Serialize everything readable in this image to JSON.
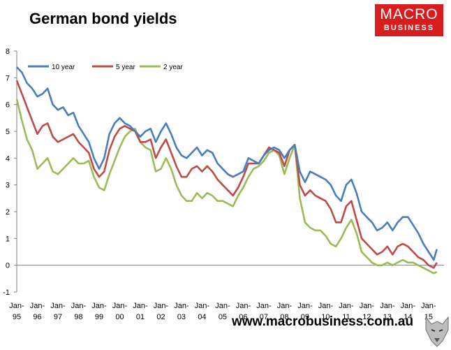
{
  "title": "German bond yields",
  "brand": {
    "line1": "MACRO",
    "line2": "BUSINESS",
    "color": "#d71d1d"
  },
  "footer": {
    "url": "www.macrobusiness.com.au",
    "logo_icon": "wolf-logo-icon"
  },
  "chart_data": {
    "type": "line",
    "title": "German bond yields",
    "xlabel": "",
    "ylabel": "",
    "ylim": [
      -1,
      8
    ],
    "yticks": [
      -1,
      0,
      1,
      2,
      3,
      4,
      5,
      6,
      7,
      8
    ],
    "xlim": [
      1995.0,
      2015.75
    ],
    "xtick_labels": [
      {
        "top": "Jan-",
        "bottom": "95"
      },
      {
        "top": "Jan-",
        "bottom": "96"
      },
      {
        "top": "Jan-",
        "bottom": "97"
      },
      {
        "top": "Jan-",
        "bottom": "98"
      },
      {
        "top": "Jan-",
        "bottom": "99"
      },
      {
        "top": "Jan-",
        "bottom": "00"
      },
      {
        "top": "Jan-",
        "bottom": "01"
      },
      {
        "top": "Jan-",
        "bottom": "02"
      },
      {
        "top": "Jan-",
        "bottom": "03"
      },
      {
        "top": "Jan-",
        "bottom": "04"
      },
      {
        "top": "Jan-",
        "bottom": "05"
      },
      {
        "top": "Jan-",
        "bottom": "06"
      },
      {
        "top": "Jan-",
        "bottom": "07"
      },
      {
        "top": "Jan-",
        "bottom": "08"
      },
      {
        "top": "Jan-",
        "bottom": "09"
      },
      {
        "top": "Jan-",
        "bottom": "10"
      },
      {
        "top": "Jan-",
        "bottom": "11"
      },
      {
        "top": "Jan-",
        "bottom": "12"
      },
      {
        "top": "Jan-",
        "bottom": "13"
      },
      {
        "top": "Jan-",
        "bottom": "14"
      },
      {
        "top": "Jan-",
        "bottom": "15"
      }
    ],
    "grid": false,
    "legend_position": "top-left",
    "series": [
      {
        "name": "10 year",
        "color": "#4a7ebb",
        "points": [
          [
            1995.0,
            7.4
          ],
          [
            1995.25,
            7.2
          ],
          [
            1995.5,
            6.8
          ],
          [
            1995.75,
            6.6
          ],
          [
            1996.0,
            6.3
          ],
          [
            1996.25,
            6.4
          ],
          [
            1996.5,
            6.6
          ],
          [
            1996.75,
            6.0
          ],
          [
            1997.0,
            5.8
          ],
          [
            1997.25,
            5.9
          ],
          [
            1997.5,
            5.6
          ],
          [
            1997.75,
            5.7
          ],
          [
            1998.0,
            5.2
          ],
          [
            1998.25,
            4.9
          ],
          [
            1998.5,
            4.6
          ],
          [
            1998.75,
            4.0
          ],
          [
            1999.0,
            3.6
          ],
          [
            1999.25,
            4.0
          ],
          [
            1999.5,
            4.9
          ],
          [
            1999.75,
            5.3
          ],
          [
            2000.0,
            5.5
          ],
          [
            2000.25,
            5.3
          ],
          [
            2000.5,
            5.2
          ],
          [
            2000.75,
            5.0
          ],
          [
            2001.0,
            4.8
          ],
          [
            2001.25,
            5.0
          ],
          [
            2001.5,
            5.1
          ],
          [
            2001.75,
            4.6
          ],
          [
            2002.0,
            5.0
          ],
          [
            2002.25,
            5.3
          ],
          [
            2002.5,
            4.9
          ],
          [
            2002.75,
            4.4
          ],
          [
            2003.0,
            4.1
          ],
          [
            2003.25,
            4.0
          ],
          [
            2003.5,
            4.2
          ],
          [
            2003.75,
            4.4
          ],
          [
            2004.0,
            4.1
          ],
          [
            2004.25,
            4.3
          ],
          [
            2004.5,
            4.2
          ],
          [
            2004.75,
            3.8
          ],
          [
            2005.0,
            3.6
          ],
          [
            2005.25,
            3.4
          ],
          [
            2005.5,
            3.3
          ],
          [
            2005.75,
            3.4
          ],
          [
            2006.0,
            3.5
          ],
          [
            2006.25,
            4.0
          ],
          [
            2006.5,
            3.9
          ],
          [
            2006.75,
            3.8
          ],
          [
            2007.0,
            4.1
          ],
          [
            2007.25,
            4.3
          ],
          [
            2007.5,
            4.4
          ],
          [
            2007.75,
            4.3
          ],
          [
            2008.0,
            4.0
          ],
          [
            2008.25,
            4.3
          ],
          [
            2008.5,
            4.5
          ],
          [
            2008.75,
            3.5
          ],
          [
            2009.0,
            3.1
          ],
          [
            2009.25,
            3.5
          ],
          [
            2009.5,
            3.4
          ],
          [
            2009.75,
            3.3
          ],
          [
            2010.0,
            3.2
          ],
          [
            2010.25,
            3.0
          ],
          [
            2010.5,
            2.6
          ],
          [
            2010.75,
            2.4
          ],
          [
            2011.0,
            3.0
          ],
          [
            2011.25,
            3.2
          ],
          [
            2011.5,
            2.7
          ],
          [
            2011.75,
            2.0
          ],
          [
            2012.0,
            1.8
          ],
          [
            2012.25,
            1.6
          ],
          [
            2012.5,
            1.3
          ],
          [
            2012.75,
            1.4
          ],
          [
            2013.0,
            1.6
          ],
          [
            2013.25,
            1.3
          ],
          [
            2013.5,
            1.6
          ],
          [
            2013.75,
            1.8
          ],
          [
            2014.0,
            1.8
          ],
          [
            2014.25,
            1.5
          ],
          [
            2014.5,
            1.2
          ],
          [
            2014.75,
            0.8
          ],
          [
            2015.0,
            0.5
          ],
          [
            2015.25,
            0.2
          ],
          [
            2015.4,
            0.6
          ]
        ]
      },
      {
        "name": "5 year",
        "color": "#be4b48",
        "points": [
          [
            1995.0,
            6.9
          ],
          [
            1995.25,
            6.4
          ],
          [
            1995.5,
            5.9
          ],
          [
            1995.75,
            5.4
          ],
          [
            1996.0,
            4.9
          ],
          [
            1996.25,
            5.2
          ],
          [
            1996.5,
            5.3
          ],
          [
            1996.75,
            4.8
          ],
          [
            1997.0,
            4.6
          ],
          [
            1997.25,
            4.7
          ],
          [
            1997.5,
            4.8
          ],
          [
            1997.75,
            4.9
          ],
          [
            1998.0,
            4.6
          ],
          [
            1998.25,
            4.4
          ],
          [
            1998.5,
            4.2
          ],
          [
            1998.75,
            3.6
          ],
          [
            1999.0,
            3.3
          ],
          [
            1999.25,
            3.5
          ],
          [
            1999.5,
            4.3
          ],
          [
            1999.75,
            4.8
          ],
          [
            2000.0,
            5.1
          ],
          [
            2000.25,
            5.2
          ],
          [
            2000.5,
            5.1
          ],
          [
            2000.75,
            5.0
          ],
          [
            2001.0,
            4.6
          ],
          [
            2001.25,
            4.6
          ],
          [
            2001.5,
            4.7
          ],
          [
            2001.75,
            4.0
          ],
          [
            2002.0,
            4.4
          ],
          [
            2002.25,
            4.7
          ],
          [
            2002.5,
            4.2
          ],
          [
            2002.75,
            3.7
          ],
          [
            2003.0,
            3.3
          ],
          [
            2003.25,
            3.3
          ],
          [
            2003.5,
            3.6
          ],
          [
            2003.75,
            3.7
          ],
          [
            2004.0,
            3.5
          ],
          [
            2004.25,
            3.7
          ],
          [
            2004.5,
            3.5
          ],
          [
            2004.75,
            3.2
          ],
          [
            2005.0,
            3.0
          ],
          [
            2005.25,
            2.8
          ],
          [
            2005.5,
            2.6
          ],
          [
            2005.75,
            2.9
          ],
          [
            2006.0,
            3.3
          ],
          [
            2006.25,
            3.8
          ],
          [
            2006.5,
            3.8
          ],
          [
            2006.75,
            3.8
          ],
          [
            2007.0,
            4.1
          ],
          [
            2007.25,
            4.4
          ],
          [
            2007.5,
            4.3
          ],
          [
            2007.75,
            4.2
          ],
          [
            2008.0,
            3.7
          ],
          [
            2008.25,
            4.3
          ],
          [
            2008.5,
            4.5
          ],
          [
            2008.75,
            3.0
          ],
          [
            2009.0,
            2.6
          ],
          [
            2009.25,
            2.8
          ],
          [
            2009.5,
            2.6
          ],
          [
            2009.75,
            2.5
          ],
          [
            2010.0,
            2.4
          ],
          [
            2010.25,
            2.1
          ],
          [
            2010.5,
            1.6
          ],
          [
            2010.75,
            1.6
          ],
          [
            2011.0,
            2.2
          ],
          [
            2011.25,
            2.4
          ],
          [
            2011.5,
            1.7
          ],
          [
            2011.75,
            1.0
          ],
          [
            2012.0,
            0.8
          ],
          [
            2012.25,
            0.6
          ],
          [
            2012.5,
            0.4
          ],
          [
            2012.75,
            0.5
          ],
          [
            2013.0,
            0.7
          ],
          [
            2013.25,
            0.4
          ],
          [
            2013.5,
            0.7
          ],
          [
            2013.75,
            0.8
          ],
          [
            2014.0,
            0.7
          ],
          [
            2014.25,
            0.5
          ],
          [
            2014.5,
            0.3
          ],
          [
            2014.75,
            0.2
          ],
          [
            2015.0,
            0.0
          ],
          [
            2015.25,
            -0.1
          ],
          [
            2015.4,
            0.1
          ]
        ]
      },
      {
        "name": "2 year",
        "color": "#9bbb59",
        "points": [
          [
            1995.0,
            6.2
          ],
          [
            1995.25,
            5.4
          ],
          [
            1995.5,
            4.7
          ],
          [
            1995.75,
            4.3
          ],
          [
            1996.0,
            3.6
          ],
          [
            1996.25,
            3.8
          ],
          [
            1996.5,
            4.0
          ],
          [
            1996.75,
            3.5
          ],
          [
            1997.0,
            3.4
          ],
          [
            1997.25,
            3.6
          ],
          [
            1997.5,
            3.8
          ],
          [
            1997.75,
            4.0
          ],
          [
            1998.0,
            3.8
          ],
          [
            1998.25,
            3.8
          ],
          [
            1998.5,
            3.9
          ],
          [
            1998.75,
            3.3
          ],
          [
            1999.0,
            2.9
          ],
          [
            1999.25,
            2.8
          ],
          [
            1999.5,
            3.4
          ],
          [
            1999.75,
            3.9
          ],
          [
            2000.0,
            4.4
          ],
          [
            2000.25,
            4.8
          ],
          [
            2000.5,
            5.0
          ],
          [
            2000.75,
            5.1
          ],
          [
            2001.0,
            4.6
          ],
          [
            2001.25,
            4.4
          ],
          [
            2001.5,
            4.3
          ],
          [
            2001.75,
            3.5
          ],
          [
            2002.0,
            3.6
          ],
          [
            2002.25,
            4.0
          ],
          [
            2002.5,
            3.6
          ],
          [
            2002.75,
            3.0
          ],
          [
            2003.0,
            2.6
          ],
          [
            2003.25,
            2.4
          ],
          [
            2003.5,
            2.4
          ],
          [
            2003.75,
            2.7
          ],
          [
            2004.0,
            2.5
          ],
          [
            2004.25,
            2.7
          ],
          [
            2004.5,
            2.6
          ],
          [
            2004.75,
            2.4
          ],
          [
            2005.0,
            2.4
          ],
          [
            2005.25,
            2.3
          ],
          [
            2005.5,
            2.2
          ],
          [
            2005.75,
            2.6
          ],
          [
            2006.0,
            2.9
          ],
          [
            2006.25,
            3.3
          ],
          [
            2006.5,
            3.6
          ],
          [
            2006.75,
            3.7
          ],
          [
            2007.0,
            3.9
          ],
          [
            2007.25,
            4.2
          ],
          [
            2007.5,
            4.3
          ],
          [
            2007.75,
            4.1
          ],
          [
            2008.0,
            3.4
          ],
          [
            2008.25,
            4.0
          ],
          [
            2008.5,
            4.5
          ],
          [
            2008.75,
            2.5
          ],
          [
            2009.0,
            1.6
          ],
          [
            2009.25,
            1.4
          ],
          [
            2009.5,
            1.3
          ],
          [
            2009.75,
            1.3
          ],
          [
            2010.0,
            1.1
          ],
          [
            2010.25,
            0.8
          ],
          [
            2010.5,
            0.7
          ],
          [
            2010.75,
            1.0
          ],
          [
            2011.0,
            1.4
          ],
          [
            2011.25,
            1.7
          ],
          [
            2011.5,
            1.2
          ],
          [
            2011.75,
            0.5
          ],
          [
            2012.0,
            0.3
          ],
          [
            2012.25,
            0.1
          ],
          [
            2012.5,
            0.0
          ],
          [
            2012.75,
            0.0
          ],
          [
            2013.0,
            0.1
          ],
          [
            2013.25,
            0.0
          ],
          [
            2013.5,
            0.1
          ],
          [
            2013.75,
            0.2
          ],
          [
            2014.0,
            0.1
          ],
          [
            2014.25,
            0.1
          ],
          [
            2014.5,
            0.0
          ],
          [
            2014.75,
            -0.1
          ],
          [
            2015.0,
            -0.2
          ],
          [
            2015.25,
            -0.3
          ],
          [
            2015.4,
            -0.25
          ]
        ]
      }
    ]
  }
}
